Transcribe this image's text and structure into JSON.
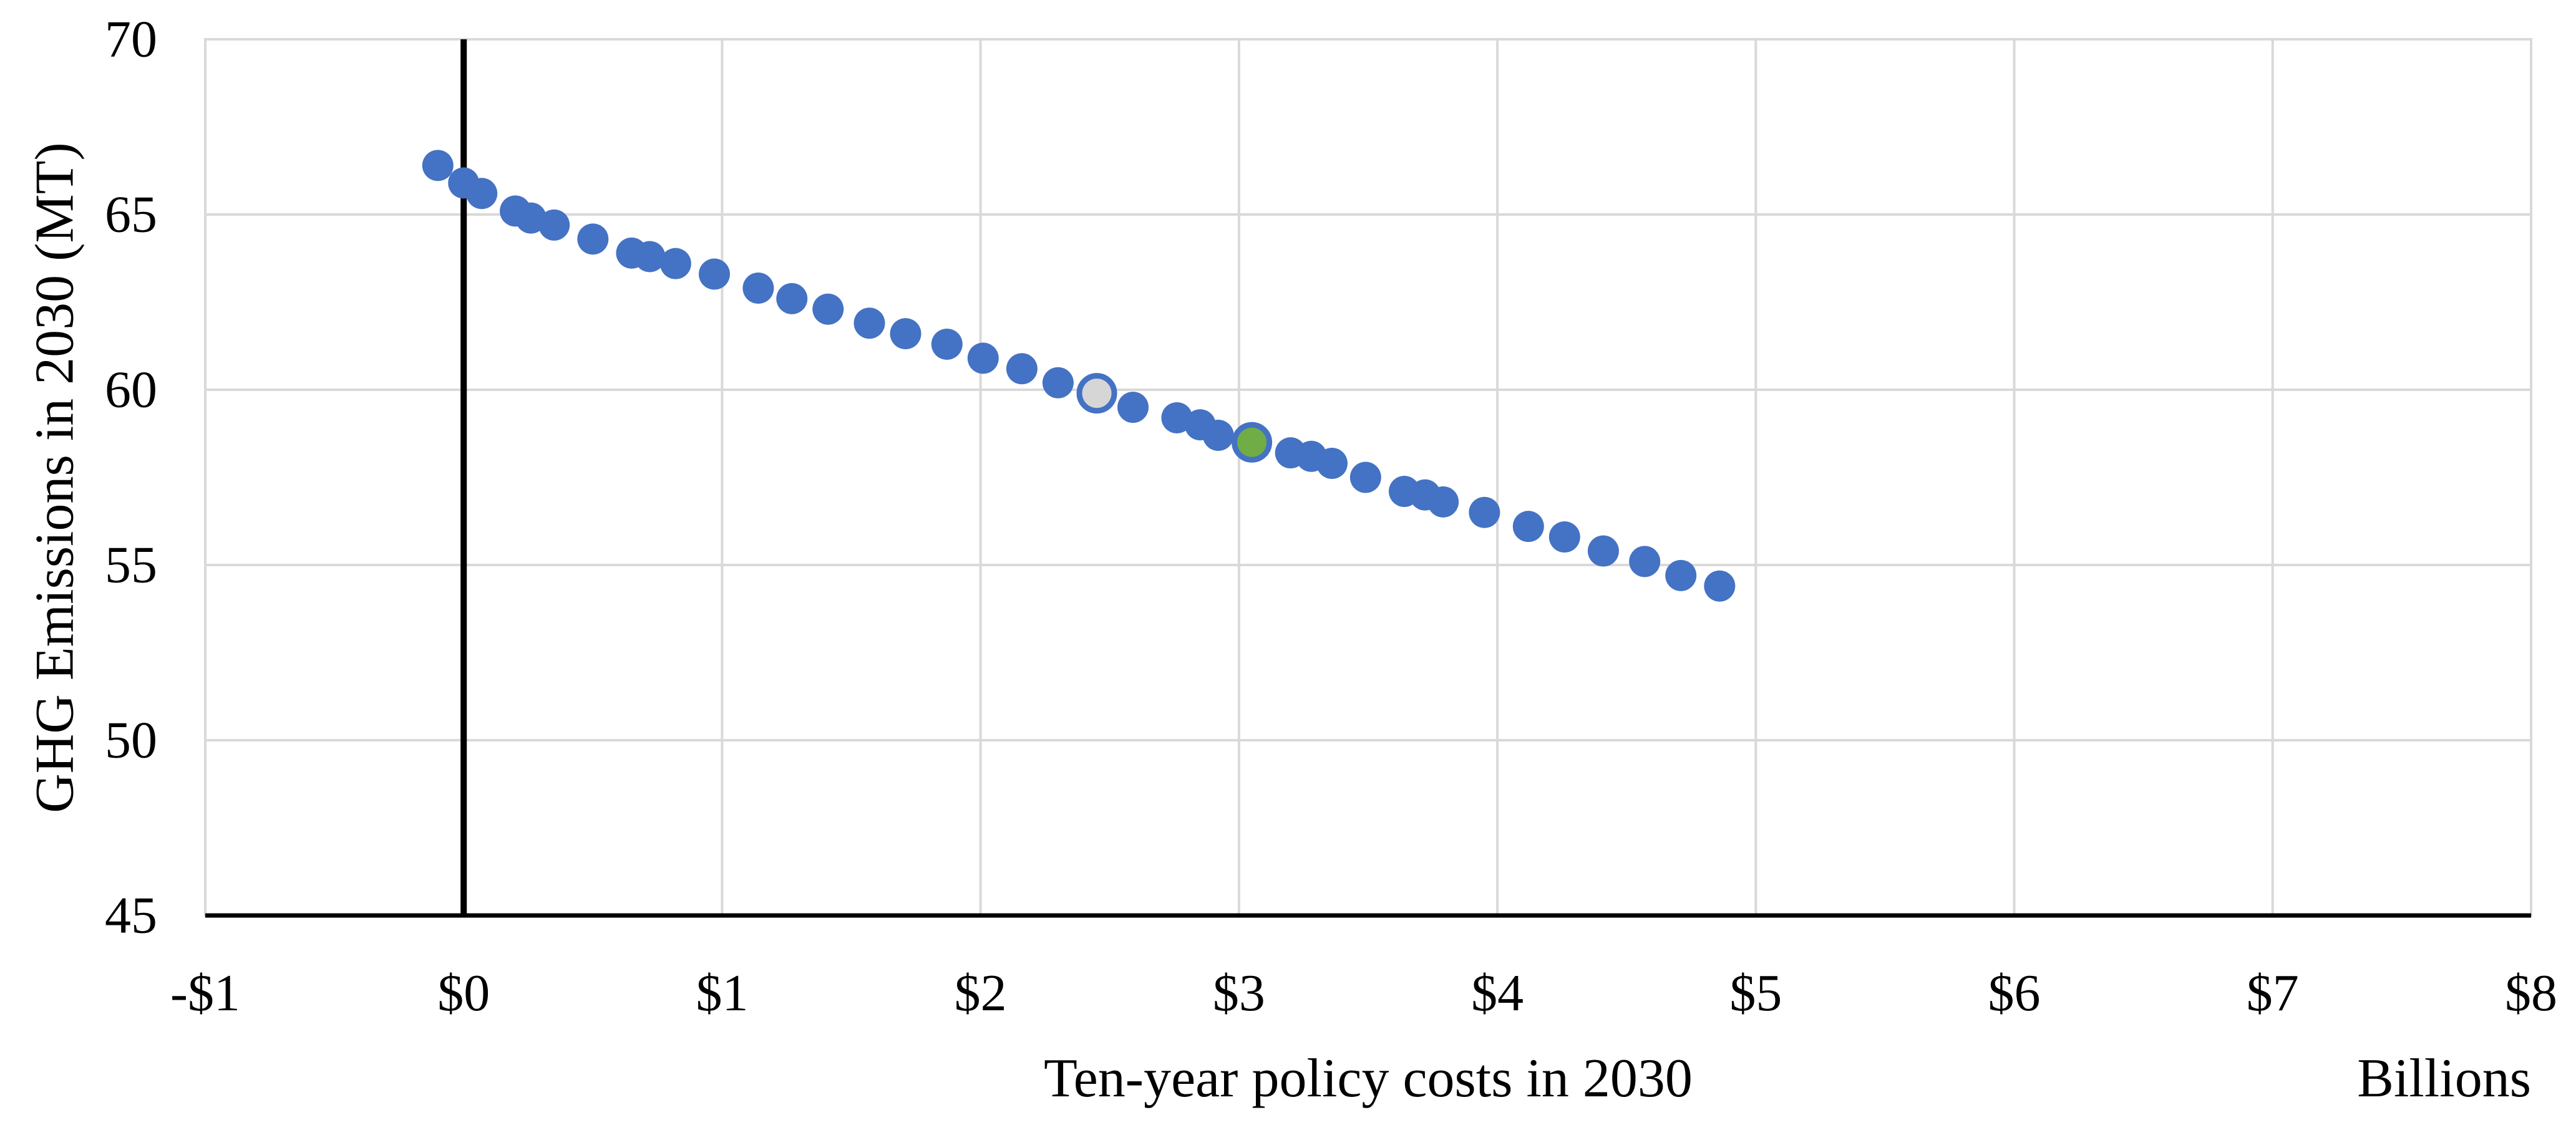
{
  "chart_data": {
    "type": "scatter",
    "title": "",
    "xlabel": "Ten-year policy costs in 2030",
    "x_units_label": "Billions",
    "ylabel": "GHG Emissions in 2030 (MT)",
    "xlim": [
      -1,
      8
    ],
    "ylim": [
      45,
      70
    ],
    "x_ticks": [
      -1,
      0,
      1,
      2,
      3,
      4,
      5,
      6,
      7,
      8
    ],
    "x_tick_labels": [
      "-$1",
      "$0",
      "$1",
      "$2",
      "$3",
      "$4",
      "$5",
      "$6",
      "$7",
      "$8"
    ],
    "y_ticks": [
      45,
      50,
      55,
      60,
      65,
      70
    ],
    "y_tick_labels": [
      "45",
      "50",
      "55",
      "60",
      "65",
      "70"
    ],
    "grid": true,
    "legend": "none",
    "zero_line_x": 0,
    "colors": {
      "blue": "#4472C4",
      "green": "#70AD47",
      "gray_fill": "#D6D6D6",
      "gridline": "#D9D9D9",
      "axis": "#000000",
      "background": "#FFFFFF"
    },
    "series": [
      {
        "name": "policy-steps",
        "marker": "circle",
        "color": "#4472C4",
        "points": [
          [
            -0.1,
            66.4
          ],
          [
            0.0,
            65.9
          ],
          [
            0.07,
            65.6
          ],
          [
            0.2,
            65.1
          ],
          [
            0.26,
            64.9
          ],
          [
            0.35,
            64.7
          ],
          [
            0.5,
            64.3
          ],
          [
            0.65,
            63.9
          ],
          [
            0.72,
            63.8
          ],
          [
            0.82,
            63.6
          ],
          [
            0.97,
            63.3
          ],
          [
            1.14,
            62.9
          ],
          [
            1.27,
            62.6
          ],
          [
            1.41,
            62.3
          ],
          [
            1.57,
            61.9
          ],
          [
            1.71,
            61.6
          ],
          [
            1.87,
            61.3
          ],
          [
            2.01,
            60.9
          ],
          [
            2.16,
            60.6
          ],
          [
            2.3,
            60.2
          ],
          [
            2.59,
            59.5
          ],
          [
            2.76,
            59.2
          ],
          [
            2.85,
            59.0
          ],
          [
            2.92,
            58.7
          ],
          [
            3.2,
            58.2
          ],
          [
            3.28,
            58.1
          ],
          [
            3.36,
            57.9
          ],
          [
            3.49,
            57.5
          ],
          [
            3.64,
            57.1
          ],
          [
            3.72,
            57.0
          ],
          [
            3.79,
            56.8
          ],
          [
            3.95,
            56.5
          ],
          [
            4.12,
            56.1
          ],
          [
            4.26,
            55.8
          ],
          [
            4.41,
            55.4
          ],
          [
            4.57,
            55.1
          ],
          [
            4.71,
            54.7
          ],
          [
            4.86,
            54.4
          ]
        ]
      },
      {
        "name": "highlighted-point-gray",
        "marker": "circle-outlined",
        "color": "#D6D6D6",
        "outline": "#4472C4",
        "points": [
          [
            2.45,
            59.9
          ]
        ]
      },
      {
        "name": "highlighted-point-green",
        "marker": "circle-outlined",
        "color": "#70AD47",
        "outline": "#4472C4",
        "points": [
          [
            3.05,
            58.5
          ]
        ]
      }
    ]
  }
}
